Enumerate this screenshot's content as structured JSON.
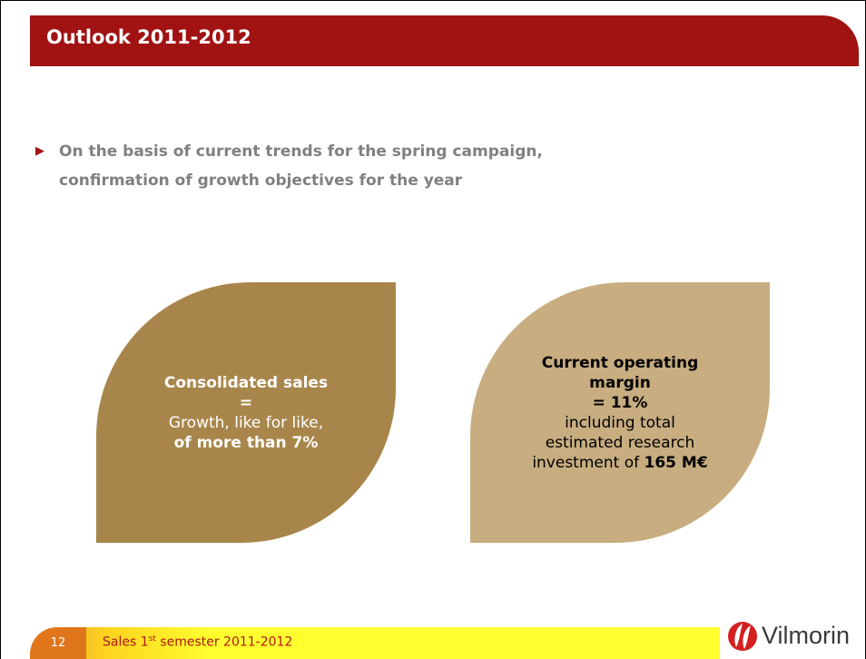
{
  "header": {
    "title": "Outlook 2011-2012"
  },
  "bullet": {
    "lines": [
      "On the basis of current trends for the spring campaign,",
      "confirmation of growth objectives for the year"
    ]
  },
  "leaves": [
    {
      "lines": [
        {
          "text": "Consolidated sales",
          "bold": true
        },
        {
          "text": "=",
          "bold": true
        },
        {
          "text": "Growth, like for like,",
          "bold": false
        },
        {
          "text": "of more than 7%",
          "bold": true
        }
      ]
    },
    {
      "lines": [
        {
          "text": "Current operating",
          "bold": true
        },
        {
          "text": "margin",
          "bold": true
        },
        {
          "text": "= 11%",
          "bold": true
        },
        {
          "text": "including total",
          "bold": false
        },
        {
          "text": "estimated research",
          "bold": false
        },
        {
          "text": "investment of ",
          "bold": false,
          "tail": "165 M€"
        }
      ]
    }
  ],
  "footer": {
    "page": "12",
    "text_main": "Sales 1",
    "text_sup": "st",
    "text_rest": " semester 2011-2012",
    "logo": "Vilmorin"
  }
}
